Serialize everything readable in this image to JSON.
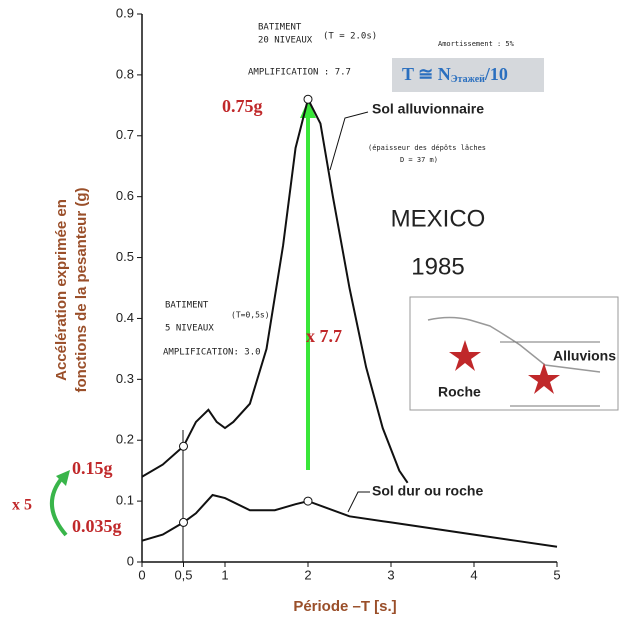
{
  "chart_data": {
    "type": "line",
    "x_label": "Période –T [s.]",
    "y_label": [
      "Accélération exprimée en",
      "fonctions de la pesanteur (g)"
    ],
    "xlim": [
      0,
      5
    ],
    "ylim": [
      0,
      0.9
    ],
    "xticks": [
      0,
      {
        "value": 0.5,
        "label": "0,5"
      },
      1,
      2,
      3,
      4,
      5
    ],
    "yticks": [
      0,
      0.1,
      0.2,
      0.3,
      0.4,
      0.5,
      0.6,
      0.7,
      0.8,
      0.9
    ],
    "series": [
      {
        "name": "Sol alluvionnaire",
        "color": "#111111",
        "x": [
          0,
          0.25,
          0.5,
          0.65,
          0.8,
          0.9,
          1,
          1.1,
          1.3,
          1.5,
          1.7,
          1.85,
          2,
          2.15,
          2.3,
          2.5,
          2.7,
          2.9,
          3.1,
          3.2
        ],
        "values": [
          0.14,
          0.16,
          0.19,
          0.23,
          0.25,
          0.23,
          0.22,
          0.23,
          0.26,
          0.35,
          0.52,
          0.68,
          0.76,
          0.72,
          0.6,
          0.45,
          0.32,
          0.22,
          0.15,
          0.13
        ]
      },
      {
        "name": "Sol dur ou roche",
        "color": "#111111",
        "x": [
          0,
          0.25,
          0.5,
          0.65,
          0.85,
          1,
          1.3,
          1.6,
          1.85,
          2,
          2.2,
          2.5,
          3,
          3.5,
          4,
          4.5,
          5
        ],
        "values": [
          0.035,
          0.045,
          0.065,
          0.08,
          0.11,
          0.105,
          0.085,
          0.085,
          0.095,
          0.1,
          0.09,
          0.075,
          0.065,
          0.055,
          0.045,
          0.035,
          0.025
        ]
      }
    ],
    "annotations": {
      "tall_building": [
        "BATIMENT",
        "20 NIVEAUX",
        "(T = 2.0s)",
        "AMPLIFICATION : 7.7"
      ],
      "damping": "Amortissement : 5%",
      "formula": [
        "T ≅ N",
        "Этажей",
        "/10"
      ],
      "peak": "0.75g",
      "deposit": [
        "(épaisseur des dépôts lâches",
        "D = 37 m)"
      ],
      "city": [
        "MEXICO",
        "1985"
      ],
      "short_building": [
        "BATIMENT",
        "5 NIVEAUX",
        "(T=0,5s)",
        "AMPLIFICATION: 3.0"
      ],
      "ratio": "x 7.7",
      "inset": [
        "Alluvions",
        "Roche"
      ],
      "low": [
        "0.15g",
        "0.035g",
        "x 5"
      ]
    }
  }
}
